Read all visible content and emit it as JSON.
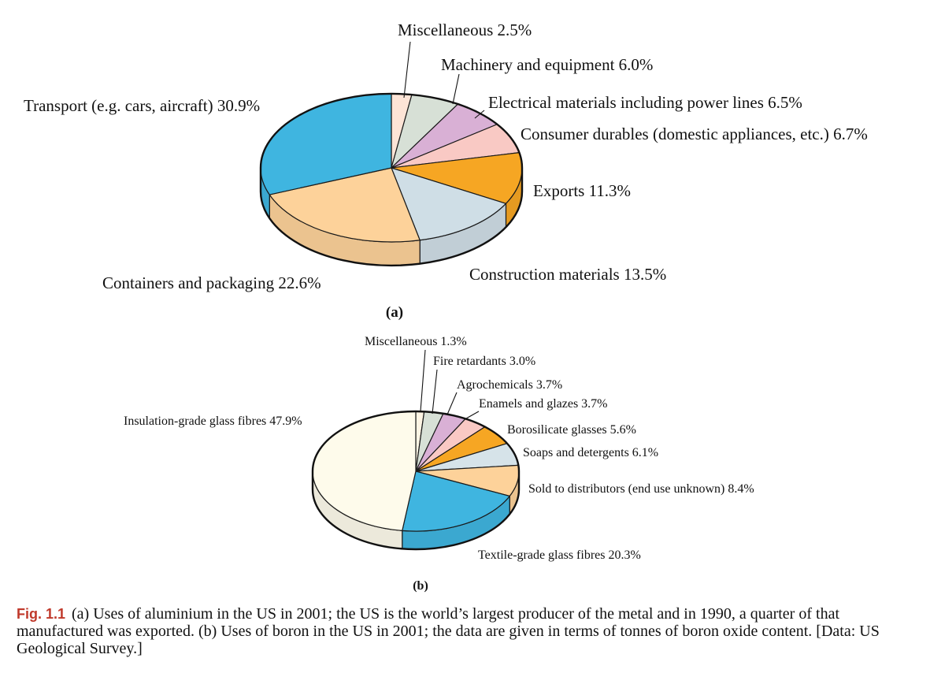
{
  "chart_data": [
    {
      "type": "pie",
      "subplot_label": "(a)",
      "slices": [
        {
          "label": "Miscellaneous 2.5%",
          "category": "Miscellaneous",
          "value": 2.5,
          "color": "#fde4d6"
        },
        {
          "label": "Machinery and equipment 6.0%",
          "category": "Machinery and equipment",
          "value": 6.0,
          "color": "#d7e0d6"
        },
        {
          "label": "Electrical materials including power lines 6.5%",
          "category": "Electrical materials including power lines",
          "value": 6.5,
          "color": "#d9b0d5"
        },
        {
          "label": "Consumer durables (domestic appliances, etc.)  6.7%",
          "category": "Consumer durables (domestic appliances, etc.)",
          "value": 6.7,
          "color": "#f9c9c4"
        },
        {
          "label": "Exports 11.3%",
          "category": "Exports",
          "value": 11.3,
          "color": "#f6a623"
        },
        {
          "label": "Construction materials 13.5%",
          "category": "Construction materials",
          "value": 13.5,
          "color": "#cfdee6"
        },
        {
          "label": "Containers and packaging 22.6%",
          "category": "Containers and packaging",
          "value": 22.6,
          "color": "#fdd29a"
        },
        {
          "label": "Transport (e.g. cars, aircraft) 30.9%",
          "category": "Transport (e.g. cars, aircraft)",
          "value": 30.9,
          "color": "#3fb5e0"
        }
      ]
    },
    {
      "type": "pie",
      "subplot_label": "(b)",
      "slices": [
        {
          "label": "Miscellaneous 1.3%",
          "category": "Miscellaneous",
          "value": 1.3,
          "color": "#fdf5e4"
        },
        {
          "label": "Fire retardants 3.0%",
          "category": "Fire retardants",
          "value": 3.0,
          "color": "#d7e0d6"
        },
        {
          "label": "Agrochemicals 3.7%",
          "category": "Agrochemicals",
          "value": 3.7,
          "color": "#d9b0d5"
        },
        {
          "label": "Enamels and glazes 3.7%",
          "category": "Enamels and glazes",
          "value": 3.7,
          "color": "#f9c9c4"
        },
        {
          "label": "Borosilicate glasses 5.6%",
          "category": "Borosilicate glasses",
          "value": 5.6,
          "color": "#f6a623"
        },
        {
          "label": "Soaps and detergents 6.1%",
          "category": "Soaps and detergents",
          "value": 6.1,
          "color": "#d6e3e9"
        },
        {
          "label": "Sold to distributors (end use unknown) 8.4%",
          "category": "Sold to distributors (end use unknown)",
          "value": 8.4,
          "color": "#fdd29a"
        },
        {
          "label": "Textile-grade glass fibres 20.3%",
          "category": "Textile-grade glass fibres",
          "value": 20.3,
          "color": "#3fb5e0"
        },
        {
          "label": "Insulation-grade glass fibres 47.9%",
          "category": "Insulation-grade glass fibres",
          "value": 47.9,
          "color": "#fefbeb"
        }
      ]
    }
  ],
  "caption": {
    "fig_label": "Fig.   1.1",
    "text": "(a) Uses of aluminium in the US in 2001; the US is the world’s largest producer of the metal and in 1990, a quarter of that manufactured was exported. (b) Uses of boron in the US in 2001; the data are given in terms of tonnes of boron oxide content. [Data: US Geological Survey.]"
  }
}
